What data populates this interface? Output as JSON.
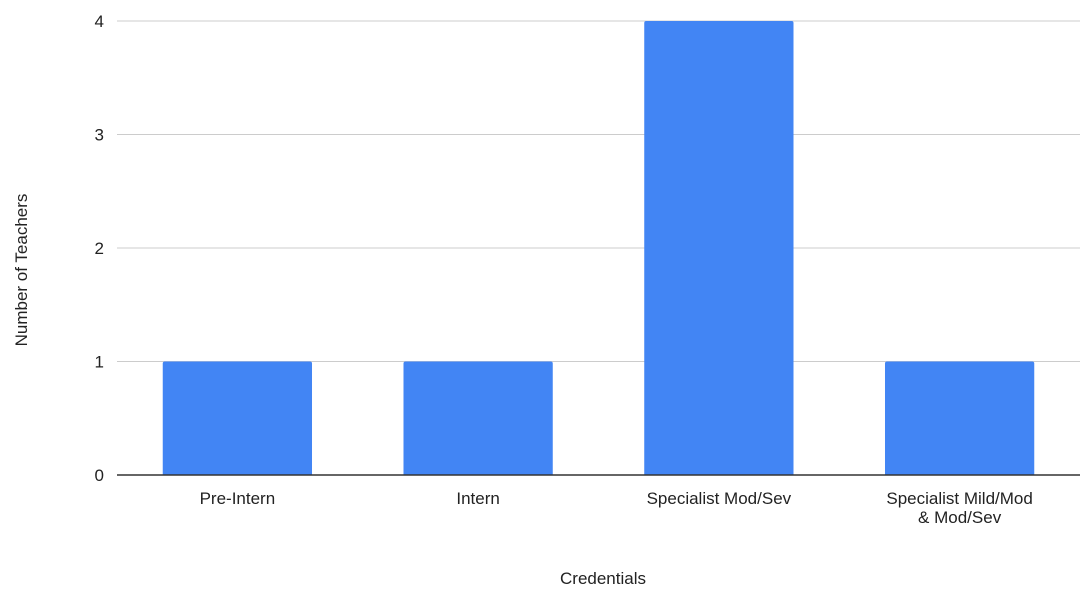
{
  "chart_data": {
    "type": "bar",
    "categories": [
      [
        "Pre-Intern"
      ],
      [
        "Intern"
      ],
      [
        "Specialist Mod/Sev"
      ],
      [
        "Specialist Mild/Mod",
        "& Mod/Sev"
      ]
    ],
    "values": [
      1,
      1,
      4,
      1
    ],
    "title": "",
    "xlabel": "Credentials",
    "ylabel": "Number of Teachers",
    "ylim": [
      0,
      4
    ],
    "yticks": [
      0,
      1,
      2,
      3,
      4
    ],
    "grid": true,
    "legend": "none",
    "colors": {
      "bar": "#4285f4",
      "grid": "#cccccc",
      "axis": "#333333",
      "text": "#222222"
    }
  }
}
